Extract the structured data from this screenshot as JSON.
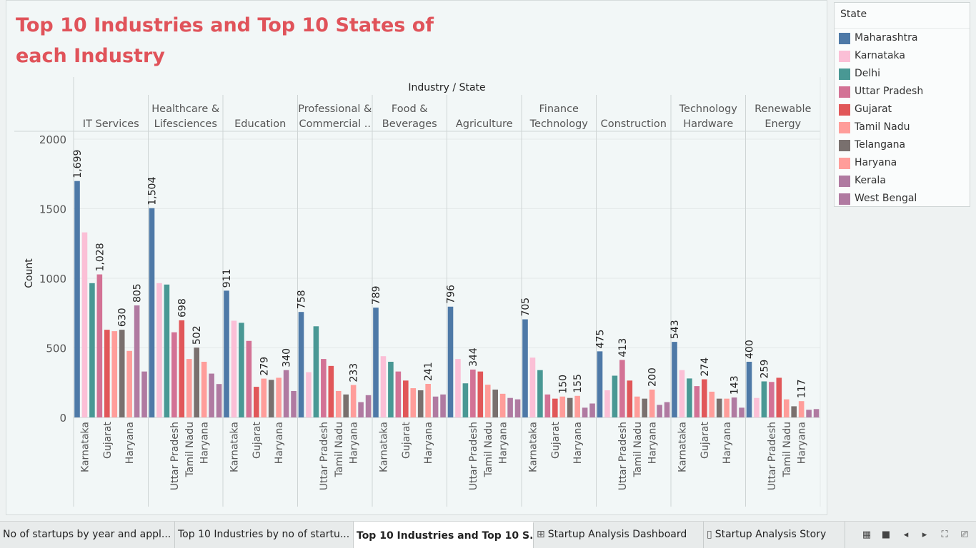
{
  "chart_data": {
    "type": "bar",
    "title": "Top 10 Industries and Top 10 States of each Industry",
    "column_header": "Industry / State",
    "ylabel": "Count",
    "ylim": [
      0,
      2000
    ],
    "yticks": [
      0,
      500,
      1000,
      1500,
      2000
    ],
    "grid": true,
    "legend_position": "right",
    "legend_title": "State",
    "states": [
      {
        "name": "Maharashtra",
        "color": "#4e79a7"
      },
      {
        "name": "Karnataka",
        "color": "#fbbfd6"
      },
      {
        "name": "Delhi",
        "color": "#499894"
      },
      {
        "name": "Uttar Pradesh",
        "color": "#d37295"
      },
      {
        "name": "Gujarat",
        "color": "#e15759"
      },
      {
        "name": "Tamil Nadu",
        "color": "#ff9d9a"
      },
      {
        "name": "Telangana",
        "color": "#79706e"
      },
      {
        "name": "Haryana",
        "color": "#ff9d9a"
      },
      {
        "name": "Kerala",
        "color": "#b07aa1"
      },
      {
        "name": "West Bengal",
        "color": "#b07aa1"
      }
    ],
    "industries": [
      {
        "name": [
          "IT Services"
        ],
        "bars": [
          {
            "state": "Maharashtra",
            "value": 1699,
            "label": "1,699"
          },
          {
            "state": "Karnataka",
            "value": 1330
          },
          {
            "state": "Delhi",
            "value": 965
          },
          {
            "state": "Uttar Pradesh",
            "value": 1028,
            "label": "1,028"
          },
          {
            "state": "Gujarat",
            "value": 630
          },
          {
            "state": "Tamil Nadu",
            "value": 620
          },
          {
            "state": "Telangana",
            "value": 630,
            "label": "630"
          },
          {
            "state": "Haryana",
            "value": 478
          },
          {
            "state": "Kerala",
            "value": 805,
            "label": "805"
          },
          {
            "state": "West Bengal",
            "value": 330
          }
        ],
        "xticks": [
          {
            "state": "Karnataka",
            "text": "Karnataka"
          },
          {
            "state": "Gujarat",
            "text": "Gujarat"
          },
          {
            "state": "Haryana",
            "text": "Haryana"
          }
        ]
      },
      {
        "name": [
          "Healthcare &",
          "Lifesciences"
        ],
        "bars": [
          {
            "state": "Maharashtra",
            "value": 1504,
            "label": "1,504"
          },
          {
            "state": "Karnataka",
            "value": 965
          },
          {
            "state": "Delhi",
            "value": 955
          },
          {
            "state": "Uttar Pradesh",
            "value": 612
          },
          {
            "state": "Gujarat",
            "value": 698,
            "label": "698"
          },
          {
            "state": "Tamil Nadu",
            "value": 420
          },
          {
            "state": "Telangana",
            "value": 502,
            "label": "502"
          },
          {
            "state": "Haryana",
            "value": 400
          },
          {
            "state": "Kerala",
            "value": 315
          },
          {
            "state": "West Bengal",
            "value": 240
          }
        ],
        "xticks": [
          {
            "state": "Uttar Pradesh",
            "text": "Uttar Pradesh"
          },
          {
            "state": "Tamil Nadu",
            "text": "Tamil Nadu"
          },
          {
            "state": "Haryana",
            "text": "Haryana"
          }
        ]
      },
      {
        "name": [
          "Education"
        ],
        "bars": [
          {
            "state": "Maharashtra",
            "value": 911,
            "label": "911"
          },
          {
            "state": "Karnataka",
            "value": 695
          },
          {
            "state": "Delhi",
            "value": 680
          },
          {
            "state": "Uttar Pradesh",
            "value": 550
          },
          {
            "state": "Gujarat",
            "value": 220
          },
          {
            "state": "Tamil Nadu",
            "value": 279,
            "label": "279"
          },
          {
            "state": "Telangana",
            "value": 270
          },
          {
            "state": "Haryana",
            "value": 285
          },
          {
            "state": "Kerala",
            "value": 340,
            "label": "340"
          },
          {
            "state": "West Bengal",
            "value": 190
          }
        ],
        "xticks": [
          {
            "state": "Karnataka",
            "text": "Karnataka"
          },
          {
            "state": "Gujarat",
            "text": "Gujarat"
          },
          {
            "state": "Haryana",
            "text": "Haryana"
          }
        ]
      },
      {
        "name": [
          "Professional &",
          "Commercial .."
        ],
        "bars": [
          {
            "state": "Maharashtra",
            "value": 758,
            "label": "758"
          },
          {
            "state": "Karnataka",
            "value": 325
          },
          {
            "state": "Delhi",
            "value": 655
          },
          {
            "state": "Uttar Pradesh",
            "value": 420
          },
          {
            "state": "Gujarat",
            "value": 370
          },
          {
            "state": "Tamil Nadu",
            "value": 190
          },
          {
            "state": "Telangana",
            "value": 165
          },
          {
            "state": "Haryana",
            "value": 233,
            "label": "233"
          },
          {
            "state": "Kerala",
            "value": 110
          },
          {
            "state": "West Bengal",
            "value": 160
          }
        ],
        "xticks": [
          {
            "state": "Uttar Pradesh",
            "text": "Uttar Pradesh"
          },
          {
            "state": "Tamil Nadu",
            "text": "Tamil Nadu"
          },
          {
            "state": "Haryana",
            "text": "Haryana"
          }
        ]
      },
      {
        "name": [
          "Food &",
          "Beverages"
        ],
        "bars": [
          {
            "state": "Maharashtra",
            "value": 789,
            "label": "789"
          },
          {
            "state": "Karnataka",
            "value": 440
          },
          {
            "state": "Delhi",
            "value": 400
          },
          {
            "state": "Uttar Pradesh",
            "value": 330
          },
          {
            "state": "Gujarat",
            "value": 265
          },
          {
            "state": "Tamil Nadu",
            "value": 210
          },
          {
            "state": "Telangana",
            "value": 195
          },
          {
            "state": "Haryana",
            "value": 241,
            "label": "241"
          },
          {
            "state": "Kerala",
            "value": 150
          },
          {
            "state": "West Bengal",
            "value": 165
          }
        ],
        "xticks": [
          {
            "state": "Karnataka",
            "text": "Karnataka"
          },
          {
            "state": "Gujarat",
            "text": "Gujarat"
          },
          {
            "state": "Haryana",
            "text": "Haryana"
          }
        ]
      },
      {
        "name": [
          "Agriculture"
        ],
        "bars": [
          {
            "state": "Maharashtra",
            "value": 796,
            "label": "796"
          },
          {
            "state": "Karnataka",
            "value": 420
          },
          {
            "state": "Delhi",
            "value": 245
          },
          {
            "state": "Uttar Pradesh",
            "value": 344,
            "label": "344"
          },
          {
            "state": "Gujarat",
            "value": 330
          },
          {
            "state": "Tamil Nadu",
            "value": 235
          },
          {
            "state": "Telangana",
            "value": 200
          },
          {
            "state": "Haryana",
            "value": 170
          },
          {
            "state": "Kerala",
            "value": 140
          },
          {
            "state": "West Bengal",
            "value": 130
          }
        ],
        "xticks": [
          {
            "state": "Uttar Pradesh",
            "text": "Uttar Pradesh"
          },
          {
            "state": "Tamil Nadu",
            "text": "Tamil Nadu"
          },
          {
            "state": "Haryana",
            "text": "Haryana"
          }
        ]
      },
      {
        "name": [
          "Finance",
          "Technology"
        ],
        "bars": [
          {
            "state": "Maharashtra",
            "value": 705,
            "label": "705"
          },
          {
            "state": "Karnataka",
            "value": 430
          },
          {
            "state": "Delhi",
            "value": 340
          },
          {
            "state": "Uttar Pradesh",
            "value": 165
          },
          {
            "state": "Gujarat",
            "value": 135
          },
          {
            "state": "Tamil Nadu",
            "value": 150,
            "label": "150"
          },
          {
            "state": "Telangana",
            "value": 140
          },
          {
            "state": "Haryana",
            "value": 155,
            "label": "155"
          },
          {
            "state": "Kerala",
            "value": 70
          },
          {
            "state": "West Bengal",
            "value": 100
          }
        ],
        "xticks": [
          {
            "state": "Karnataka",
            "text": "Karnataka"
          },
          {
            "state": "Gujarat",
            "text": "Gujarat"
          },
          {
            "state": "Haryana",
            "text": "Haryana"
          }
        ]
      },
      {
        "name": [
          "Construction"
        ],
        "bars": [
          {
            "state": "Maharashtra",
            "value": 475,
            "label": "475"
          },
          {
            "state": "Karnataka",
            "value": 195
          },
          {
            "state": "Delhi",
            "value": 300
          },
          {
            "state": "Uttar Pradesh",
            "value": 413,
            "label": "413"
          },
          {
            "state": "Gujarat",
            "value": 265
          },
          {
            "state": "Tamil Nadu",
            "value": 150
          },
          {
            "state": "Telangana",
            "value": 135
          },
          {
            "state": "Haryana",
            "value": 200,
            "label": "200"
          },
          {
            "state": "Kerala",
            "value": 90
          },
          {
            "state": "West Bengal",
            "value": 110
          }
        ],
        "xticks": [
          {
            "state": "Uttar Pradesh",
            "text": "Uttar Pradesh"
          },
          {
            "state": "Tamil Nadu",
            "text": "Tamil Nadu"
          },
          {
            "state": "Haryana",
            "text": "Haryana"
          }
        ]
      },
      {
        "name": [
          "Technology",
          "Hardware"
        ],
        "bars": [
          {
            "state": "Maharashtra",
            "value": 543,
            "label": "543"
          },
          {
            "state": "Karnataka",
            "value": 340
          },
          {
            "state": "Delhi",
            "value": 280
          },
          {
            "state": "Uttar Pradesh",
            "value": 225
          },
          {
            "state": "Gujarat",
            "value": 274,
            "label": "274"
          },
          {
            "state": "Tamil Nadu",
            "value": 185
          },
          {
            "state": "Telangana",
            "value": 135
          },
          {
            "state": "Haryana",
            "value": 135
          },
          {
            "state": "Kerala",
            "value": 143,
            "label": "143"
          },
          {
            "state": "West Bengal",
            "value": 70
          }
        ],
        "xticks": [
          {
            "state": "Karnataka",
            "text": "Karnataka"
          },
          {
            "state": "Gujarat",
            "text": "Gujarat"
          },
          {
            "state": "Haryana",
            "text": "Haryana"
          }
        ]
      },
      {
        "name": [
          "Renewable",
          "Energy"
        ],
        "bars": [
          {
            "state": "Maharashtra",
            "value": 400,
            "label": "400"
          },
          {
            "state": "Karnataka",
            "value": 140
          },
          {
            "state": "Delhi",
            "value": 259,
            "label": "259"
          },
          {
            "state": "Uttar Pradesh",
            "value": 255
          },
          {
            "state": "Gujarat",
            "value": 285
          },
          {
            "state": "Tamil Nadu",
            "value": 130
          },
          {
            "state": "Telangana",
            "value": 80
          },
          {
            "state": "Haryana",
            "value": 117,
            "label": "117"
          },
          {
            "state": "Kerala",
            "value": 55
          },
          {
            "state": "West Bengal",
            "value": 60
          }
        ],
        "xticks": [
          {
            "state": "Uttar Pradesh",
            "text": "Uttar Pradesh"
          },
          {
            "state": "Tamil Nadu",
            "text": "Tamil Nadu"
          },
          {
            "state": "Haryana",
            "text": "Haryana"
          }
        ]
      }
    ]
  },
  "tabs": [
    {
      "label": "No of startups by  year and appl...",
      "icon": "",
      "active": false
    },
    {
      "label": "Top 10 Industries by no of startu...",
      "icon": "",
      "active": false
    },
    {
      "label": "Top 10 Industries and Top 10 S...",
      "icon": "",
      "active": true
    },
    {
      "label": "Startup Analysis Dashboard",
      "icon": "dashboard-icon",
      "active": false
    },
    {
      "label": "Startup Analysis Story",
      "icon": "story-icon",
      "active": false
    }
  ],
  "controls": [
    {
      "name": "show-filmstrip-icon",
      "glyph": "▦"
    },
    {
      "name": "show-sheet-icon",
      "glyph": "■"
    },
    {
      "name": "previous-sheet-icon",
      "glyph": "◂"
    },
    {
      "name": "next-sheet-icon",
      "glyph": "▸"
    },
    {
      "name": "fit-screen-icon",
      "glyph": "⛶"
    },
    {
      "name": "presentation-mode-icon",
      "glyph": "⎚"
    }
  ]
}
